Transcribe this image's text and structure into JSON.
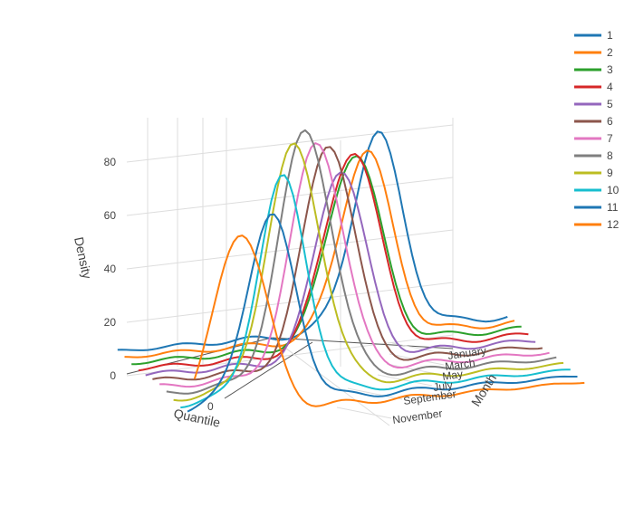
{
  "chart_data": {
    "type": "line",
    "projection": "3d",
    "title": "",
    "axes": {
      "x": {
        "title": "Quantile",
        "tick_labels": [
          "0"
        ]
      },
      "y": {
        "title": "Month",
        "tick_labels": [
          "January",
          "March",
          "May",
          "July",
          "September",
          "November"
        ]
      },
      "z": {
        "title": "Density",
        "tick_labels": [
          "0",
          "20",
          "40",
          "60",
          "80"
        ],
        "range": [
          0,
          92
        ]
      }
    },
    "legend": {
      "placement": "top-right"
    },
    "series": [
      {
        "name": "1",
        "color": "#1f77b4",
        "month_index": 1,
        "peak_density": 70,
        "peak_quantile": 0.35
      },
      {
        "name": "2",
        "color": "#ff7f0e",
        "month_index": 2,
        "peak_density": 67,
        "peak_quantile": 0.25
      },
      {
        "name": "3",
        "color": "#2ca02c",
        "month_index": 3,
        "peak_density": 69,
        "peak_quantile": 0.15
      },
      {
        "name": "4",
        "color": "#d62728",
        "month_index": 4,
        "peak_density": 72,
        "peak_quantile": 0.1
      },
      {
        "name": "5",
        "color": "#9467bd",
        "month_index": 5,
        "peak_density": 69,
        "peak_quantile": 0.0
      },
      {
        "name": "6",
        "color": "#8c564b",
        "month_index": 6,
        "peak_density": 81,
        "peak_quantile": -0.1
      },
      {
        "name": "7",
        "color": "#e377c2",
        "month_index": 7,
        "peak_density": 84,
        "peak_quantile": -0.2
      },
      {
        "name": "8",
        "color": "#7f7f7f",
        "month_index": 8,
        "peak_density": 90,
        "peak_quantile": -0.3
      },
      {
        "name": "9",
        "color": "#bcbd22",
        "month_index": 9,
        "peak_density": 87,
        "peak_quantile": -0.4
      },
      {
        "name": "10",
        "color": "#17becf",
        "month_index": 10,
        "peak_density": 78,
        "peak_quantile": -0.5
      },
      {
        "name": "11",
        "color": "#1f77b4",
        "month_index": 11,
        "peak_density": 67,
        "peak_quantile": -0.6
      },
      {
        "name": "12",
        "color": "#ff7f0e",
        "month_index": 12,
        "peak_density": 66,
        "peak_quantile": -0.8
      }
    ]
  }
}
